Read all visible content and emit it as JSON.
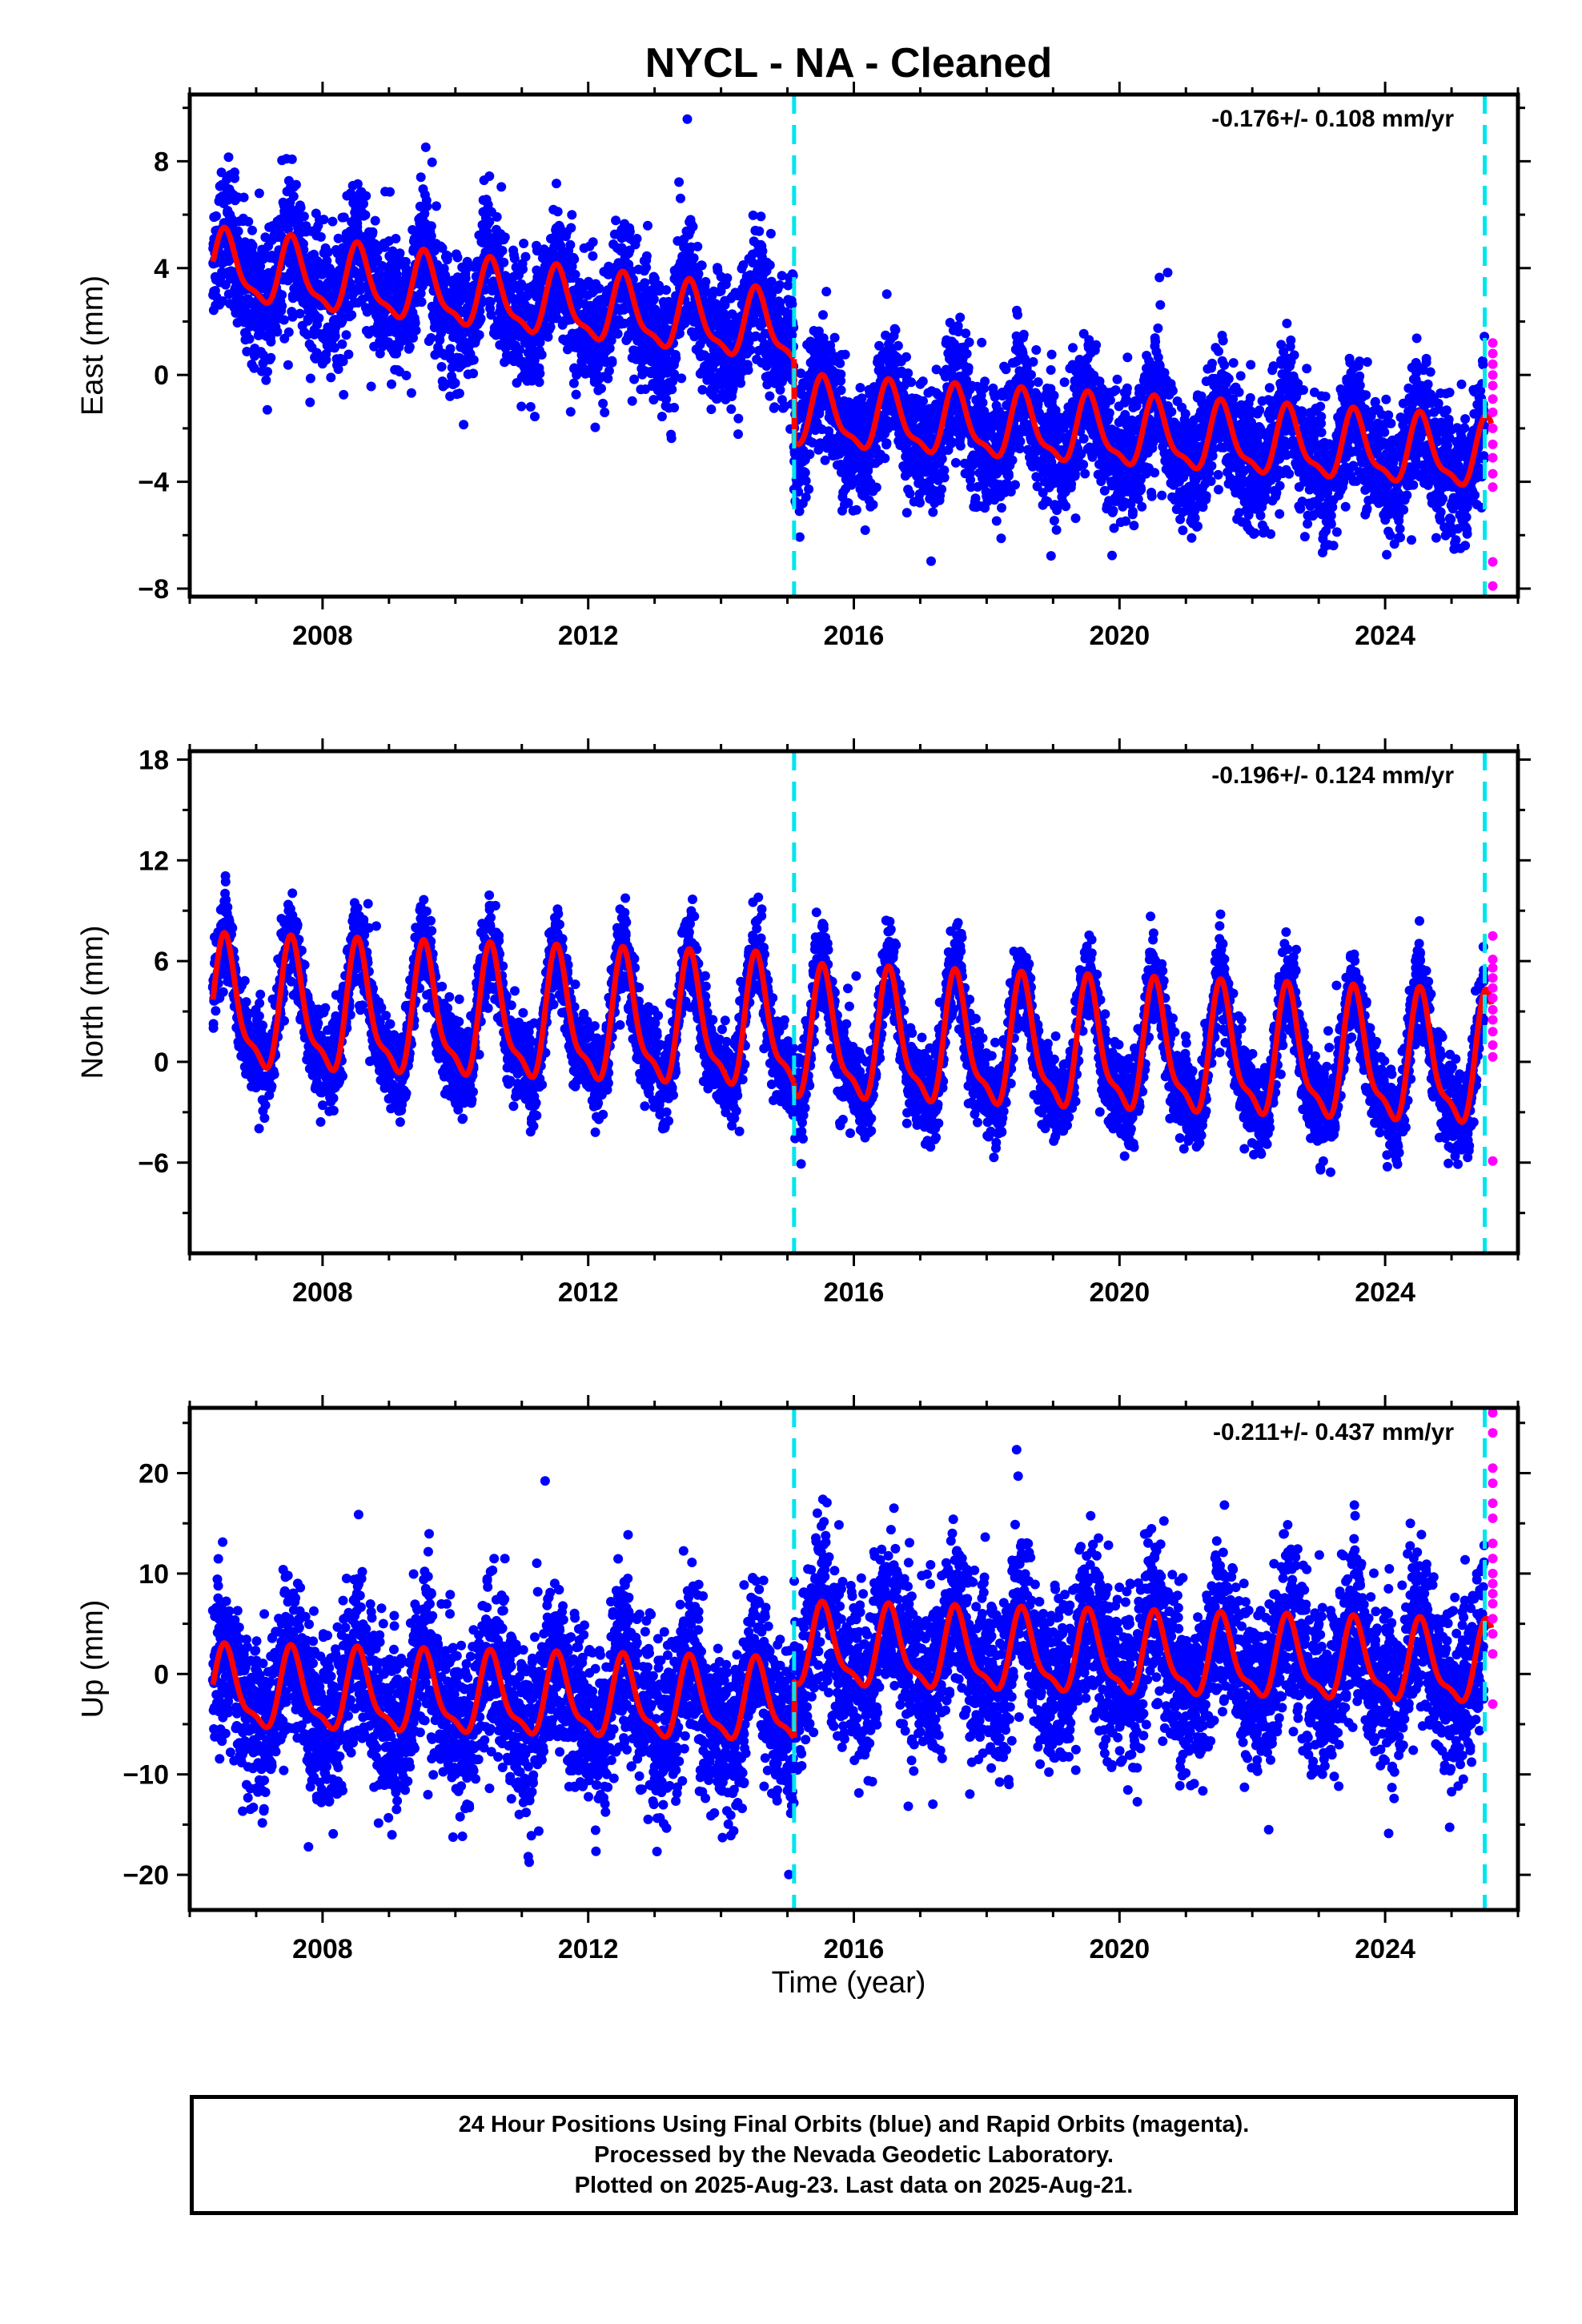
{
  "title": "NYCL  - NA - Cleaned",
  "x_axis_label": "Time (year)",
  "footer": {
    "line1": "24 Hour Positions Using Final Orbits (blue) and Rapid Orbits (magenta).",
    "line2": "Processed by the Nevada Geodetic Laboratory.",
    "line3": "Plotted on 2025-Aug-23. Last data on 2025-Aug-21."
  },
  "colors": {
    "final_orbits": "#0000ff",
    "rapid_orbits": "#ff00ff",
    "model_fit": "#ff0000",
    "steps": "#00e5ee"
  },
  "chart_data": [
    {
      "type": "scatter",
      "component": "East",
      "ylabel": "East (mm)",
      "xlim": [
        2006.0,
        2026.0
      ],
      "ylim": [
        -8.3,
        10.5
      ],
      "xticks": [
        2008,
        2012,
        2016,
        2020,
        2024
      ],
      "yticks": [
        -8,
        -4,
        0,
        4,
        8
      ],
      "rate_annotation": "-0.176+/- 0.108 mm/yr",
      "steps": [
        2015.1,
        2025.5
      ],
      "grid": false,
      "model": {
        "segments": [
          {
            "x": [
              2006.35,
              2015.1
            ],
            "y_start": 4.0,
            "y_end": 1.6
          },
          {
            "x": [
              2015.1,
              2025.6
            ],
            "y_start": -1.5,
            "y_end": -3.1
          }
        ],
        "annual_amplitude_mm": 1.6,
        "scatter_mm": 1.2
      },
      "rapid_points": [
        1.2,
        0.8,
        0.4,
        0.0,
        -0.4,
        -0.9,
        -1.4,
        -2.0,
        -2.6,
        -3.1,
        -3.7,
        -4.2,
        -7.0,
        -7.9
      ]
    },
    {
      "type": "scatter",
      "component": "North",
      "ylabel": "North (mm)",
      "xlim": [
        2006.0,
        2026.0
      ],
      "ylim": [
        -11.4,
        18.5
      ],
      "xticks": [
        2008,
        2012,
        2016,
        2020,
        2024
      ],
      "yticks": [
        -6,
        0,
        6,
        12,
        18
      ],
      "rate_annotation": "-0.196+/- 0.124 mm/yr",
      "steps": [
        2015.1,
        2025.5
      ],
      "grid": false,
      "model": {
        "segments": [
          {
            "x": [
              2006.35,
              2015.1
            ],
            "y_start": 3.0,
            "y_end": 1.8
          },
          {
            "x": [
              2015.1,
              2025.6
            ],
            "y_start": 1.2,
            "y_end": -0.4
          }
        ],
        "annual_amplitude_mm": 4.8,
        "scatter_mm": 1.3
      },
      "rapid_points": [
        7.5,
        6.1,
        5.6,
        5.0,
        4.4,
        3.8,
        3.1,
        2.5,
        1.8,
        1.0,
        0.3,
        -5.9
      ]
    },
    {
      "type": "scatter",
      "component": "Up",
      "ylabel": "Up (mm)",
      "xlim": [
        2006.0,
        2026.0
      ],
      "ylim": [
        -23.5,
        26.5
      ],
      "xticks": [
        2008,
        2012,
        2016,
        2020,
        2024
      ],
      "yticks": [
        -20,
        -10,
        0,
        10,
        20
      ],
      "rate_annotation": "-0.211+/- 0.437 mm/yr",
      "steps": [
        2015.1,
        2025.5
      ],
      "grid": false,
      "model": {
        "segments": [
          {
            "x": [
              2006.35,
              2015.1
            ],
            "y_start": -1.8,
            "y_end": -3.2
          },
          {
            "x": [
              2015.1,
              2025.6
            ],
            "y_start": 2.4,
            "y_end": 0.6
          }
        ],
        "annual_amplitude_mm": 5.0,
        "scatter_mm": 4.2
      },
      "rapid_points": [
        26.0,
        24.0,
        20.5,
        19.0,
        17.0,
        15.5,
        13.0,
        11.5,
        10.0,
        9.0,
        8.0,
        7.0,
        5.5,
        4.0,
        2.0,
        -3.0
      ]
    }
  ]
}
